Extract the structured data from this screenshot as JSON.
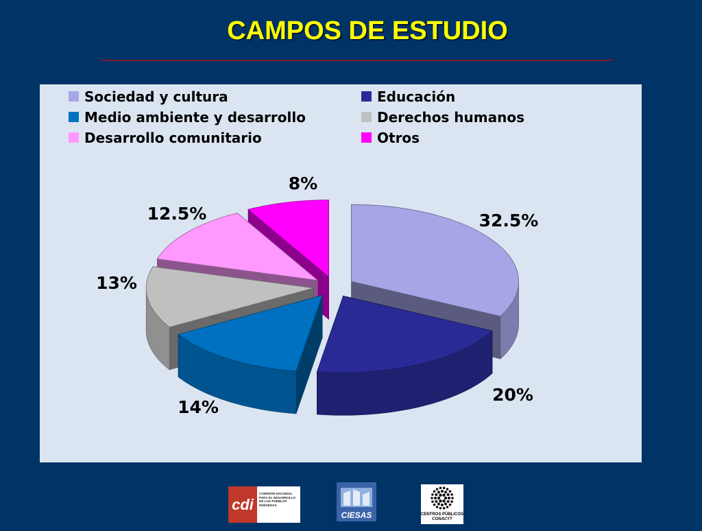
{
  "title": "CAMPOS DE ESTUDIO",
  "chart_data": {
    "type": "pie",
    "title": "CAMPOS DE ESTUDIO",
    "legend_position": "top",
    "slices": [
      {
        "name": "Sociedad y cultura",
        "value": 32.5,
        "label": "32.5%",
        "color": "#a6a6e6"
      },
      {
        "name": "Educación",
        "value": 20,
        "label": "20%",
        "color": "#2a2a96"
      },
      {
        "name": "Medio ambiente y desarrollo",
        "value": 14,
        "label": "14%",
        "color": "#0070c0"
      },
      {
        "name": "Derechos humanos",
        "value": 13,
        "label": "13%",
        "color": "#c0c0c0"
      },
      {
        "name": "Desarrollo comunitario",
        "value": 12.5,
        "label": "12.5%",
        "color": "#ff99ff"
      },
      {
        "name": "Otros",
        "value": 8,
        "label": "8%",
        "color": "#ff00ff"
      }
    ]
  },
  "logos": {
    "cdi": {
      "mark": "cdi",
      "text": "COMISIÓN NACIONAL PARA EL DESARROLLO DE LOS PUEBLOS INDÍGENAS"
    },
    "ciesas": {
      "text": "CIESAS"
    },
    "conacyt": {
      "text1": "CENTROS PÚBLICOS",
      "text2": "CONACYT"
    }
  }
}
